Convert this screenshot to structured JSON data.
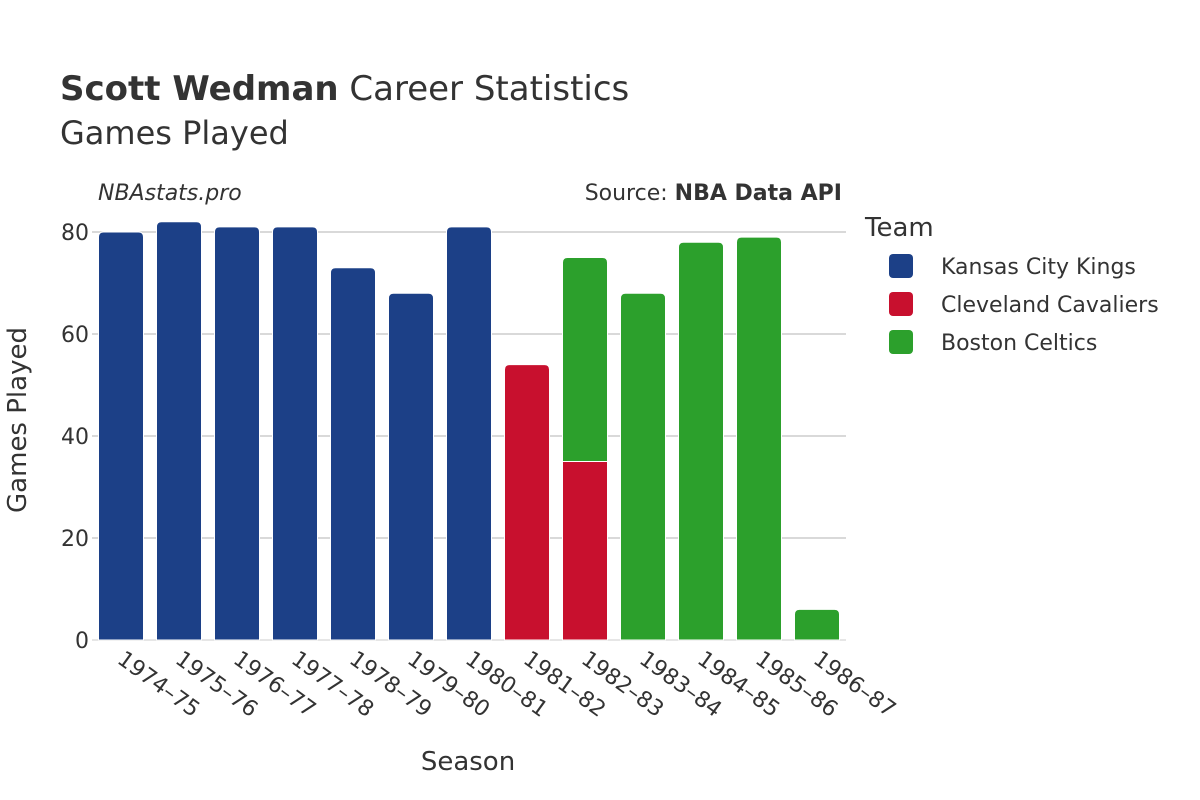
{
  "header": {
    "player_name": "Scott Wedman",
    "title_rest": " Career Statistics",
    "subtitle": "Games Played",
    "site": "NBAstats.pro",
    "source_label": "Source: ",
    "source_name": "NBA Data API"
  },
  "legend": {
    "title": "Team"
  },
  "chart_data": {
    "type": "bar",
    "stacked": true,
    "title": "Scott Wedman Career Statistics",
    "subtitle": "Games Played",
    "xlabel": "Season",
    "ylabel": "Games Played",
    "ylim": [
      0,
      82
    ],
    "yticks": [
      0,
      20,
      40,
      60,
      80
    ],
    "grid": true,
    "legend_position": "right",
    "categories": [
      "1974-75",
      "1975-76",
      "1976-77",
      "1977-78",
      "1978-79",
      "1979-80",
      "1980-81",
      "1981-82",
      "1982-83",
      "1983-84",
      "1984-85",
      "1985-86",
      "1986-87"
    ],
    "series": [
      {
        "name": "Kansas City Kings",
        "color": "#1c4087",
        "values": [
          80,
          82,
          81,
          81,
          73,
          68,
          81,
          0,
          0,
          0,
          0,
          0,
          0
        ]
      },
      {
        "name": "Cleveland Cavaliers",
        "color": "#c8102e",
        "values": [
          0,
          0,
          0,
          0,
          0,
          0,
          0,
          54,
          35,
          0,
          0,
          0,
          0
        ]
      },
      {
        "name": "Boston Celtics",
        "color": "#2ca02c",
        "values": [
          0,
          0,
          0,
          0,
          0,
          0,
          0,
          0,
          40,
          68,
          78,
          79,
          6
        ]
      }
    ]
  }
}
